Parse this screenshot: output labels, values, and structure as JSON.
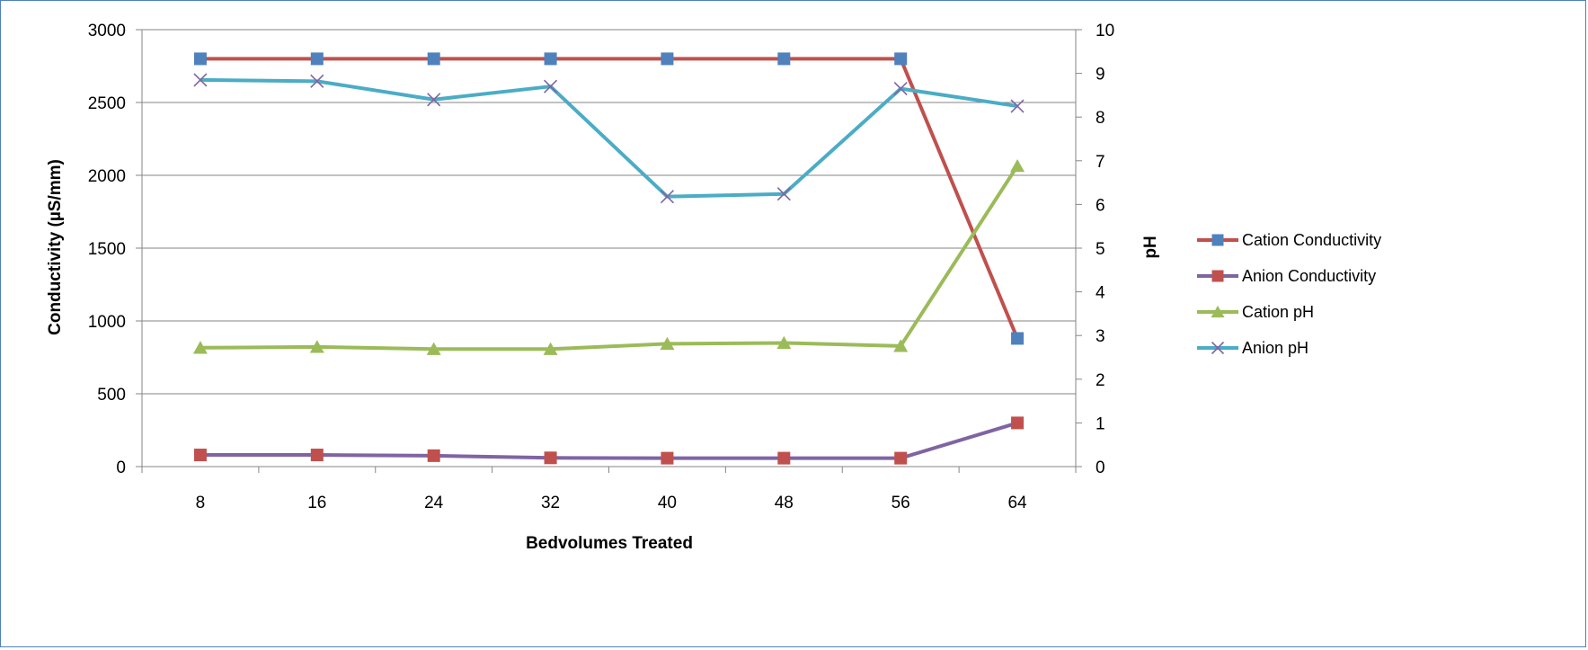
{
  "chart_data": {
    "type": "line",
    "xlabel": "Bedvolumes Treated",
    "ylabel": "Conductivity (µS/mm)",
    "y2label": "pH",
    "categories": [
      "8",
      "16",
      "24",
      "32",
      "40",
      "48",
      "56",
      "64"
    ],
    "ylim": [
      0,
      3000
    ],
    "yticks": [
      "0",
      "500",
      "1000",
      "1500",
      "2000",
      "2500",
      "3000"
    ],
    "y2lim": [
      0,
      10
    ],
    "y2ticks": [
      "0",
      "1",
      "2",
      "3",
      "4",
      "5",
      "6",
      "7",
      "8",
      "9",
      "10"
    ],
    "grid": "horizontal",
    "legend_position": "right",
    "series": [
      {
        "name": "Cation Conductivity",
        "axis": "left",
        "color": "#c0504d",
        "marker": "square",
        "marker_color": "#4f81bd",
        "values": [
          2800,
          2800,
          2800,
          2800,
          2800,
          2800,
          2800,
          880
        ]
      },
      {
        "name": "Anion Conductivity",
        "axis": "left",
        "color": "#8064a2",
        "marker": "square",
        "marker_color": "#c0504d",
        "values": [
          80,
          80,
          75,
          60,
          58,
          58,
          58,
          300
        ]
      },
      {
        "name": "Cation pH",
        "axis": "right",
        "color": "#9bbb59",
        "marker": "triangle",
        "marker_color": "#9bbb59",
        "values": [
          2.72,
          2.74,
          2.69,
          2.69,
          2.81,
          2.83,
          2.76,
          6.88
        ]
      },
      {
        "name": "Anion pH",
        "axis": "right",
        "color": "#4bacc6",
        "marker": "x",
        "marker_color": "#8064a2",
        "values": [
          8.85,
          8.82,
          8.4,
          8.7,
          6.18,
          6.24,
          8.65,
          8.25
        ]
      }
    ]
  }
}
